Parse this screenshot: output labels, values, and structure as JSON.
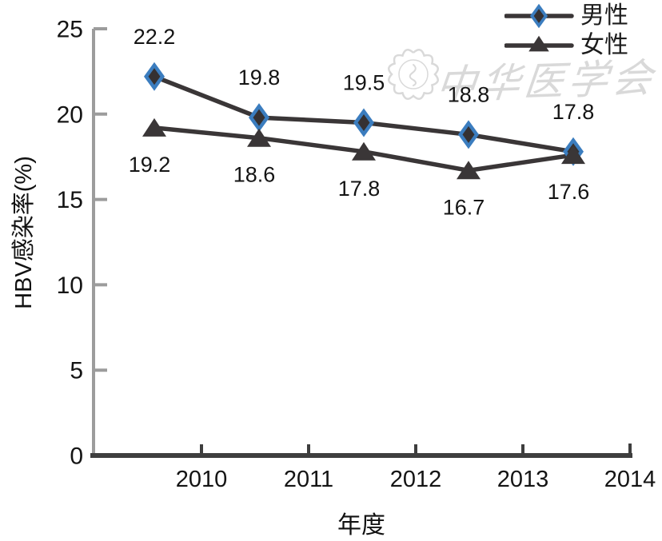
{
  "chart_data": {
    "type": "line",
    "title": "",
    "categories": [
      "2010",
      "2011",
      "2012",
      "2013",
      "2014"
    ],
    "series": [
      {
        "name": "男性",
        "values": [
          22.2,
          19.8,
          19.5,
          18.8,
          17.8
        ],
        "marker": "diamond",
        "marker_color": "#3b7dbf",
        "marker_inner_color": "#353132",
        "line_color": "#3a3637",
        "label_side": "above"
      },
      {
        "name": "女性",
        "values": [
          19.2,
          18.6,
          17.8,
          16.7,
          17.6
        ],
        "marker": "triangle",
        "marker_color": "#3a3637",
        "marker_inner_color": "#3a3637",
        "line_color": "#3a3637",
        "label_side": "below"
      }
    ],
    "xlabel": "年度",
    "ylabel": "HBV感染率(%)",
    "ylim": [
      0,
      25
    ],
    "yticks": [
      0,
      5,
      10,
      15,
      20,
      25
    ],
    "xticklabels": [
      "2010",
      "2011",
      "2012",
      "2013",
      "2014"
    ],
    "legend_position": "top-right",
    "grid": false,
    "axis_colors": {
      "y_axis": "#9c9c9c",
      "x_axis": "#3e3e3e",
      "tick_label": "#141414",
      "data_label": "#141414"
    }
  },
  "watermark": {
    "text": "中华医学会",
    "color": "#d9d9d9"
  }
}
